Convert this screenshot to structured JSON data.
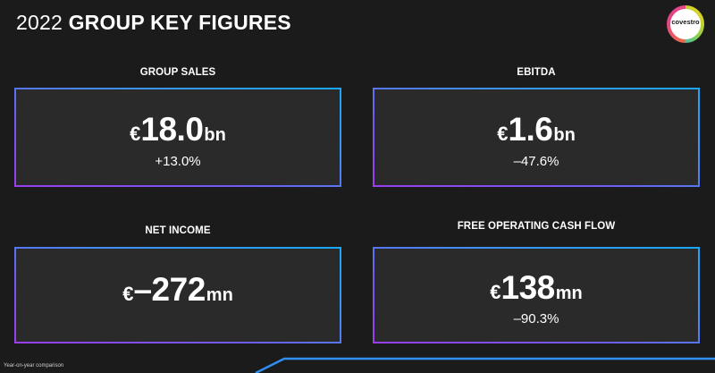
{
  "header": {
    "year": "2022",
    "title": "GROUP KEY FIGURES",
    "logo_text": "covestro"
  },
  "kpis": [
    {
      "label": "GROUP SALES",
      "currency": "€",
      "value": "18.0",
      "unit": "bn",
      "change": "+13.0%"
    },
    {
      "label": "EBITDA",
      "currency": "€",
      "value": "1.6",
      "unit": "bn",
      "change": "–47.6%"
    },
    {
      "label": "NET INCOME",
      "currency": "€",
      "value": "–272",
      "unit": "mn",
      "change": ""
    },
    {
      "label": "FREE OPERATING CASH FLOW",
      "currency": "€",
      "value": "138",
      "unit": "mn",
      "change": "–90.3%"
    }
  ],
  "footnote": "Year-on-year comparison",
  "colors": {
    "background": "#1b1b1c",
    "box_fill": "#2a2a2b",
    "border_gradient_start": "#9a3df0",
    "border_gradient_end": "#1aa8f6",
    "accent_line": "#2f8ff0"
  }
}
